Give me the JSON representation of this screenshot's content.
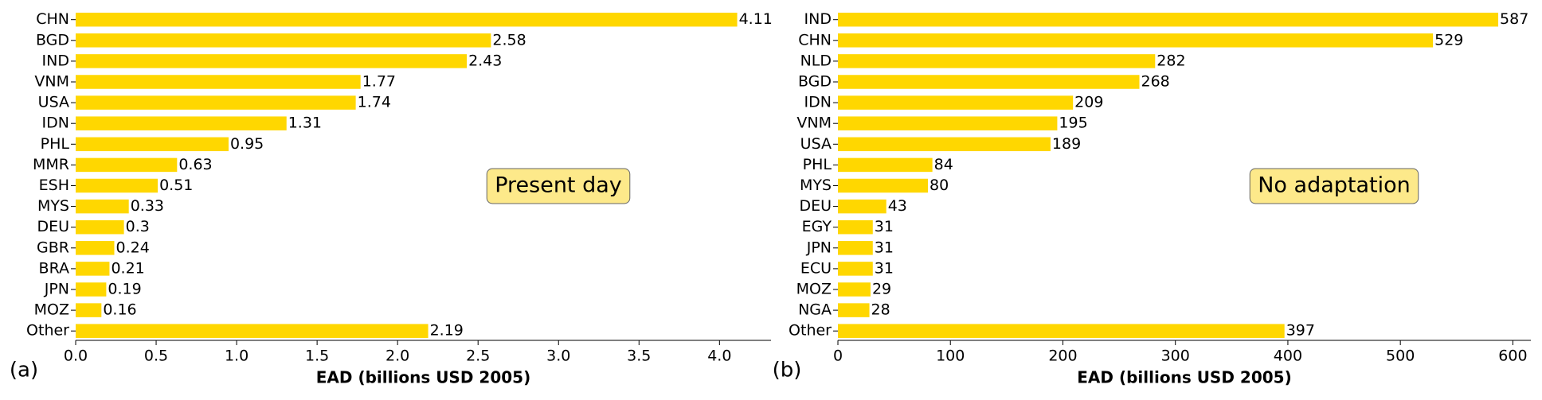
{
  "chart_data": [
    {
      "type": "bar",
      "orientation": "horizontal",
      "panel_label": "(a)",
      "annotation": "Present day",
      "xlabel": "EAD (billions USD 2005)",
      "color": "#ffd700",
      "categories": [
        "CHN",
        "BGD",
        "IND",
        "VNM",
        "USA",
        "IDN",
        "PHL",
        "MMR",
        "ESH",
        "MYS",
        "DEU",
        "GBR",
        "BRA",
        "JPN",
        "MOZ",
        "Other"
      ],
      "values": [
        4.11,
        2.58,
        2.43,
        1.77,
        1.74,
        1.31,
        0.95,
        0.63,
        0.51,
        0.33,
        0.3,
        0.24,
        0.21,
        0.19,
        0.16,
        2.19
      ],
      "xlim": [
        0,
        4.32
      ],
      "xticks": [
        {
          "value": 0,
          "label": "0.0"
        },
        0.5,
        {
          "value": 1,
          "label": "1.0"
        },
        1.5,
        {
          "value": 2,
          "label": "2.0"
        },
        2.5,
        {
          "value": 3,
          "label": "3.0"
        },
        3.5,
        {
          "value": 4,
          "label": "4.0"
        }
      ]
    },
    {
      "type": "bar",
      "orientation": "horizontal",
      "panel_label": "(b)",
      "annotation": "No adaptation",
      "xlabel": "EAD (billions USD 2005)",
      "color": "#ffd700",
      "categories": [
        "IND",
        "CHN",
        "NLD",
        "BGD",
        "IDN",
        "VNM",
        "USA",
        "PHL",
        "MYS",
        "DEU",
        "EGY",
        "JPN",
        "ECU",
        "MOZ",
        "NGA",
        "Other"
      ],
      "values": [
        587,
        529,
        282,
        268,
        209,
        195,
        189,
        84,
        80,
        43,
        31,
        31,
        31,
        29,
        28,
        397
      ],
      "xlim": [
        0,
        616
      ],
      "xticks": [
        0,
        100,
        200,
        300,
        400,
        500,
        600
      ]
    }
  ]
}
